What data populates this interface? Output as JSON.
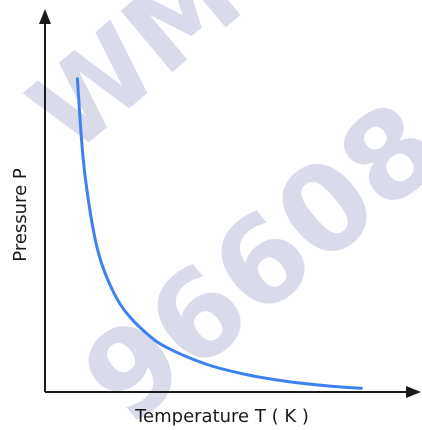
{
  "chart_data": {
    "type": "line",
    "title": "",
    "xlabel": "Temperature T ( K )",
    "ylabel": "Pressure P",
    "grid": false,
    "legend": "none",
    "axis_ticks": false,
    "series": [
      {
        "color": "#3b82f0",
        "x": [
          0.4,
          0.45,
          0.5,
          0.6,
          0.7,
          0.85,
          1.0,
          1.25,
          1.5,
          2.0,
          2.5,
          3.0,
          3.5,
          3.9
        ],
        "values": [
          4.21,
          3.4,
          2.85,
          2.15,
          1.72,
          1.33,
          1.07,
          0.79,
          0.6,
          0.37,
          0.23,
          0.14,
          0.08,
          0.05
        ]
      }
    ],
    "xlim": [
      0,
      4.5
    ],
    "ylim": [
      0,
      5
    ]
  },
  "watermark": {
    "text_1": "WM",
    "text_2": "96608",
    "color": "#cdd0e4"
  },
  "colors": {
    "axis": "#1a1a1a",
    "curve": "#3b82f0"
  }
}
